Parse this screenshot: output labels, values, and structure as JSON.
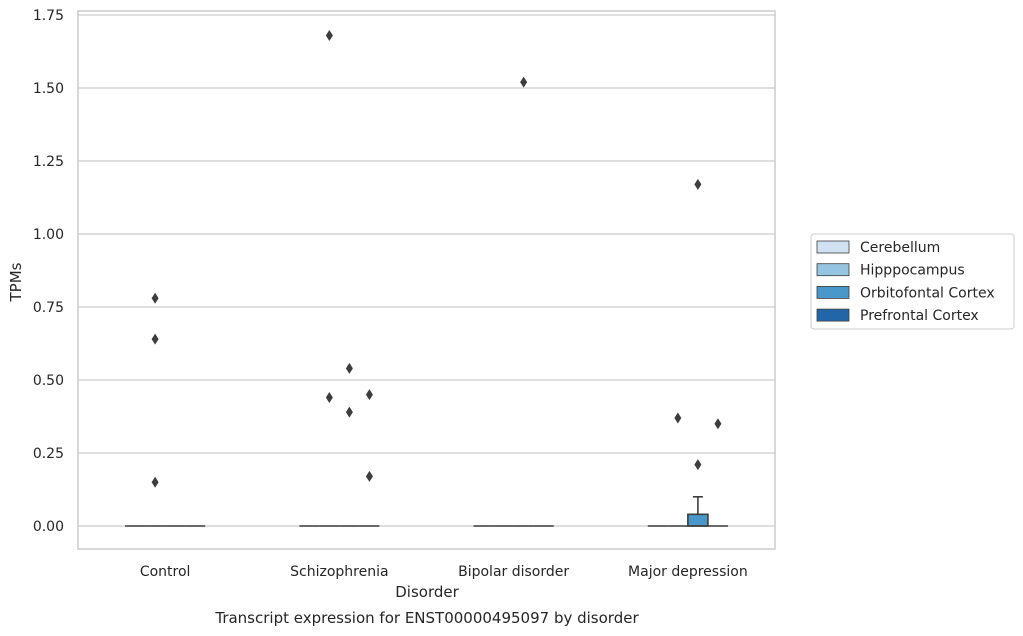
{
  "chart_data": {
    "type": "box",
    "title": "",
    "caption": "Transcript expression for ENST00000495097 by disorder",
    "xlabel": "Disorder",
    "ylabel": "TPMs",
    "ylim": [
      -0.08,
      1.76
    ],
    "yticks": [
      "0.00",
      "0.25",
      "0.50",
      "0.75",
      "1.00",
      "1.25",
      "1.50",
      "1.75"
    ],
    "categories": [
      "Control",
      "Schizophrenia",
      "Bipolar disorder",
      "Major depression"
    ],
    "grid": "horizontal",
    "legend_position": "right",
    "series": [
      {
        "name": "Cerebellum",
        "color": "#d0e1f2",
        "boxes": [
          {
            "q1": 0,
            "median": 0,
            "q3": 0,
            "whisker_low": 0,
            "whisker_high": 0,
            "outliers": []
          },
          {
            "q1": 0,
            "median": 0,
            "q3": 0,
            "whisker_low": 0,
            "whisker_high": 0,
            "outliers": []
          },
          {
            "q1": 0,
            "median": 0,
            "q3": 0,
            "whisker_low": 0,
            "whisker_high": 0,
            "outliers": []
          },
          {
            "q1": 0,
            "median": 0,
            "q3": 0,
            "whisker_low": 0,
            "whisker_high": 0,
            "outliers": []
          }
        ]
      },
      {
        "name": "Hipppocampus",
        "color": "#94c4df",
        "boxes": [
          {
            "q1": 0,
            "median": 0,
            "q3": 0,
            "whisker_low": 0,
            "whisker_high": 0,
            "outliers": [
              0.78,
              0.64,
              0.15
            ]
          },
          {
            "q1": 0,
            "median": 0,
            "q3": 0,
            "whisker_low": 0,
            "whisker_high": 0,
            "outliers": [
              1.68,
              0.44
            ]
          },
          {
            "q1": 0,
            "median": 0,
            "q3": 0,
            "whisker_low": 0,
            "whisker_high": 0,
            "outliers": []
          },
          {
            "q1": 0,
            "median": 0,
            "q3": 0,
            "whisker_low": 0,
            "whisker_high": 0,
            "outliers": [
              0.37
            ]
          }
        ]
      },
      {
        "name": "Orbitofontal Cortex",
        "color": "#4a98c9",
        "boxes": [
          {
            "q1": 0,
            "median": 0,
            "q3": 0,
            "whisker_low": 0,
            "whisker_high": 0,
            "outliers": []
          },
          {
            "q1": 0,
            "median": 0,
            "q3": 0,
            "whisker_low": 0,
            "whisker_high": 0,
            "outliers": [
              0.54,
              0.39
            ]
          },
          {
            "q1": 0,
            "median": 0,
            "q3": 0,
            "whisker_low": 0,
            "whisker_high": 0,
            "outliers": [
              1.52
            ]
          },
          {
            "q1": 0,
            "median": 0,
            "q3": 0.04,
            "whisker_low": 0,
            "whisker_high": 0.1,
            "outliers": [
              1.17,
              0.21
            ]
          }
        ]
      },
      {
        "name": "Prefrontal Cortex",
        "color": "#2366a8",
        "boxes": [
          {
            "q1": 0,
            "median": 0,
            "q3": 0,
            "whisker_low": 0,
            "whisker_high": 0,
            "outliers": []
          },
          {
            "q1": 0,
            "median": 0,
            "q3": 0,
            "whisker_low": 0,
            "whisker_high": 0,
            "outliers": [
              0.45,
              0.17
            ]
          },
          {
            "q1": 0,
            "median": 0,
            "q3": 0,
            "whisker_low": 0,
            "whisker_high": 0,
            "outliers": []
          },
          {
            "q1": 0,
            "median": 0,
            "q3": 0,
            "whisker_low": 0,
            "whisker_high": 0,
            "outliers": [
              0.35
            ]
          }
        ]
      }
    ]
  }
}
